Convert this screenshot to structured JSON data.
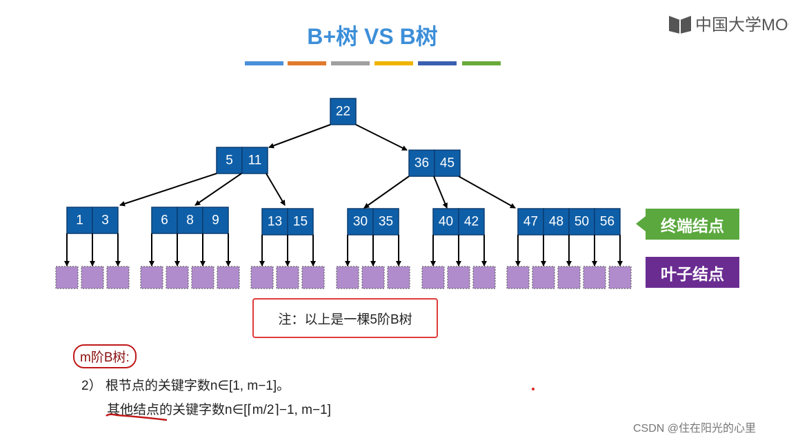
{
  "title": "B+树 VS B树",
  "logo": "中国大学MOOC",
  "color_bars": [
    "#4a90d9",
    "#e07b2e",
    "#a0a0a0",
    "#f0b400",
    "#3a5fb0",
    "#6aaa3a"
  ],
  "tree": {
    "root": [
      22
    ],
    "level2": [
      [
        5,
        11
      ],
      [
        36,
        45
      ]
    ],
    "level3": [
      [
        1,
        3
      ],
      [
        6,
        8,
        9
      ],
      [
        13,
        15
      ],
      [
        30,
        35
      ],
      [
        40,
        42
      ],
      [
        47,
        48,
        50,
        56
      ]
    ]
  },
  "labels": {
    "terminal": "终端结点",
    "terminal_color": "#5aa83e",
    "leaf": "叶子结点",
    "leaf_color": "#6a2c91"
  },
  "note": "注：以上是一棵5阶B树",
  "rules": {
    "heading": "m阶B树:",
    "line1": "2）  根节点的关键字数n∈[1, m−1]。",
    "line2": "其他结点的关键字数n∈[⌈m/2⌉−1, m−1]"
  },
  "watermark": "CSDN @住在阳光的心里"
}
